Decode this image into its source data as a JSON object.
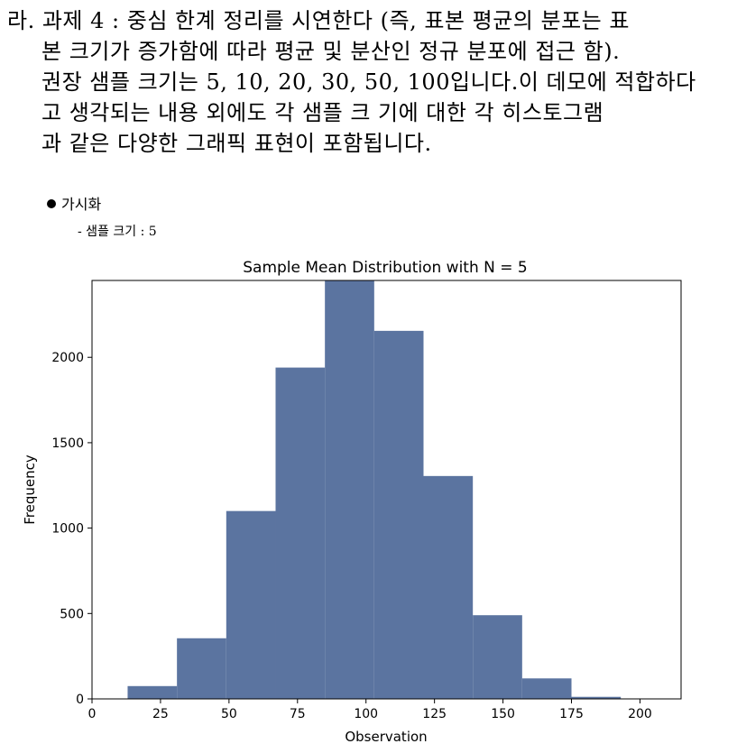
{
  "document": {
    "lines": [
      "라. 과제 4 : 중심 한계 정리를 시연한다 (즉, 표본 평균의 분포는 표",
      "본 크기가 증가함에 따라 평균 및 분산인 정규 분포에 접근 함).",
      "권장 샘플 크기는 5, 10, 20, 30, 50, 100입니다.이 데모에 적합하다",
      "고 생각되는 내용 외에도 각 샘플 크 기에 대한 각 히스토그램",
      "과 같은 다양한 그래픽 표현이 포함됩니다."
    ],
    "section_heading": "가시화",
    "sub_heading": "- 샘플 크기 : 5"
  },
  "chart_data": {
    "type": "bar",
    "title": "Sample Mean Distribution with N = 5",
    "xlabel": "Observation",
    "ylabel": "Frequency",
    "xlim": [
      0,
      215
    ],
    "ylim": [
      0,
      2450
    ],
    "x_ticks": [
      0,
      25,
      50,
      75,
      100,
      125,
      150,
      175,
      200
    ],
    "y_ticks": [
      0,
      500,
      1000,
      1500,
      2000
    ],
    "bar_color": "#5b74a0",
    "bins": [
      {
        "x0": 13,
        "x1": 31,
        "value": 75
      },
      {
        "x0": 31,
        "x1": 49,
        "value": 355
      },
      {
        "x0": 49,
        "x1": 67,
        "value": 1100
      },
      {
        "x0": 67,
        "x1": 85,
        "value": 1940
      },
      {
        "x0": 85,
        "x1": 103,
        "value": 2450
      },
      {
        "x0": 103,
        "x1": 121,
        "value": 2155
      },
      {
        "x0": 121,
        "x1": 139,
        "value": 1305
      },
      {
        "x0": 139,
        "x1": 157,
        "value": 490
      },
      {
        "x0": 157,
        "x1": 175,
        "value": 120
      },
      {
        "x0": 175,
        "x1": 193,
        "value": 12
      }
    ]
  }
}
